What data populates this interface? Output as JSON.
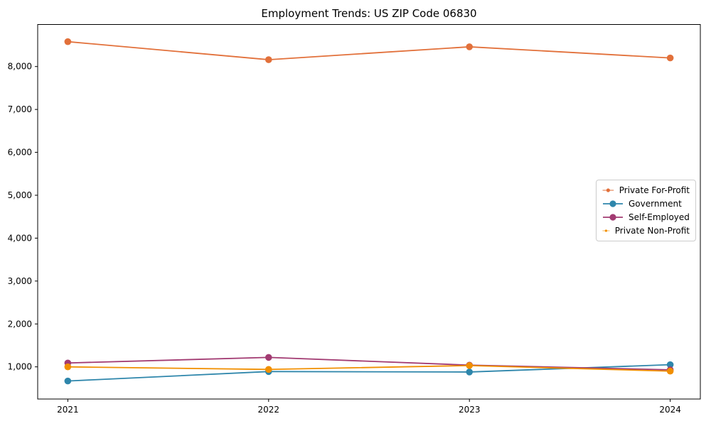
{
  "window": {
    "background": "#ffffff",
    "frame_color": "#000000"
  },
  "chart_data": {
    "type": "line",
    "title": "Employment Trends: US ZIP Code 06830",
    "xlabel": "",
    "ylabel": "",
    "x": [
      2021,
      2022,
      2023,
      2024
    ],
    "xtick_labels": [
      "2021",
      "2022",
      "2023",
      "2024"
    ],
    "ytick_values": [
      1000,
      2000,
      3000,
      4000,
      5000,
      6000,
      7000,
      8000
    ],
    "ytick_labels": [
      "1,000",
      "2,000",
      "3,000",
      "4,000",
      "5,000",
      "6,000",
      "7,000",
      "8,000"
    ],
    "xlim": [
      2020.85,
      2024.15
    ],
    "ylim": [
      250,
      8980
    ],
    "grid": false,
    "marker": "circle",
    "legend_position": "center-right",
    "series": [
      {
        "name": "Private For-Profit",
        "color": "#E2703A",
        "values": [
          8580,
          8160,
          8460,
          8200
        ]
      },
      {
        "name": "Government",
        "color": "#2E86AB",
        "values": [
          670,
          890,
          880,
          1050
        ]
      },
      {
        "name": "Self-Employed",
        "color": "#A23B72",
        "values": [
          1090,
          1220,
          1040,
          930
        ]
      },
      {
        "name": "Private Non-Profit",
        "color": "#F18F01",
        "values": [
          1000,
          940,
          1030,
          900
        ]
      }
    ]
  }
}
